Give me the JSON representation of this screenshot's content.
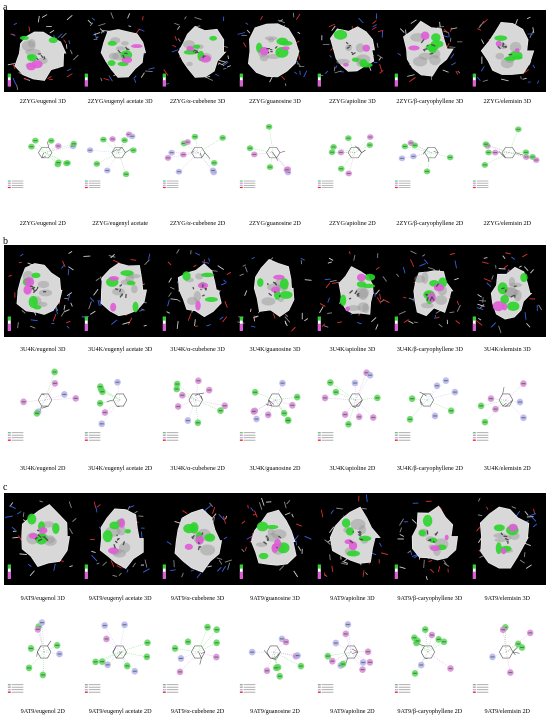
{
  "panels": [
    {
      "letter": "a",
      "captions_3d": [
        "2ZYG/eugenol 3D",
        "2ZYG/eugenyl acetate  3D",
        "2ZYG/α-cubebene 3D",
        "2ZYG/guanosine 3D",
        "2ZYG/apioline 3D",
        "2ZYG/β-caryophyllene 3D",
        "2ZYG/elemisin 3D"
      ],
      "captions_2d": [
        "2ZYG/eugenol 2D",
        "2ZYG/eugenyl acetate",
        "2ZYG/α-cubebene 2D",
        "2ZYG/guanosine 2D",
        "2ZYG/apioline 2D",
        "2ZYG/β-caryophyllene 2D",
        "2ZYG/elemisin 2D"
      ]
    },
    {
      "letter": "b",
      "captions_3d": [
        "3U4K/eugenol 3D",
        "3U4K/eugenyl acetate  3D",
        "3U4K/α-cubebene 3D",
        "3U4K/guanosine 3D",
        "3U4K/apioline 3D",
        "3U4K/β-caryophyllene 3D",
        "3U4K/elemisin 3D"
      ],
      "captions_2d": [
        "3U4K/eugenol 2D",
        "3U4K/eugenyl acetate  2D",
        "3U4K/α-cubebene 2D",
        "3U4K/guanosine 2D",
        "3U4K/apioline 2D",
        "3U4K/β-caryophyllene 2D",
        "3U4K/elemisin 2D"
      ]
    },
    {
      "letter": "c",
      "captions_3d": [
        "9AT9/eugenol 3D",
        "9AT9/eugenyl acetate  3D",
        "9AT9/α-cubebene 3D",
        "9AT9/guanosine 3D",
        "9AT9/apioline 3D",
        "9AT9/β-caryophyllene 3D",
        "9AT9/elemisin 3D"
      ],
      "captions_2d": [
        "9AT9/eugenol 2D",
        "9AT9/eugenyl acetate  2D",
        "9AT9/α-cubebene 2D",
        "9AT9/guanosine 2D",
        "9AT9/apioline 2D",
        "9AT9/β-caryophyllene 2D",
        "9AT9/elemisin 2D"
      ]
    }
  ],
  "colors": {
    "background_3d": "#000000",
    "surface": "#d8d8d8",
    "hbond_green": "#2bd52b",
    "pi_pink": "#e05bd8",
    "carbon_grey": "#8a8a8a",
    "oxygen_red": "#e03030",
    "nitrogen_blue": "#3a5fe0",
    "residue_green": "#5ad65a",
    "residue_pink": "#d98ad9",
    "residue_lilac": "#b8b0f0"
  }
}
